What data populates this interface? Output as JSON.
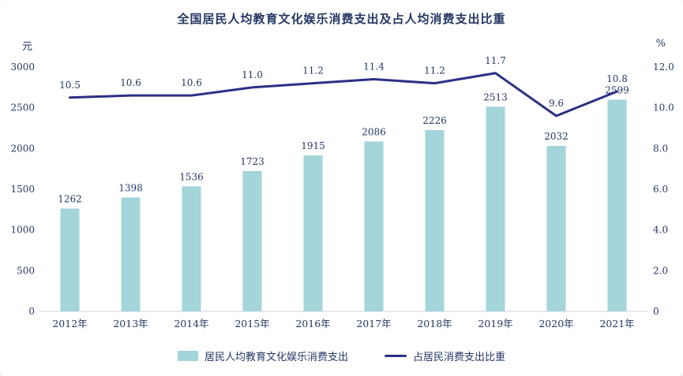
{
  "title": "全国居民人均教育文化娱乐消费支出及占人均消费支出比重",
  "colors": {
    "bar": "#a3d5da",
    "line": "#2b3184",
    "text": "#243763",
    "axis_line": "#cfd4d9"
  },
  "legend": {
    "bar_label": "居民人均教育文化娱乐消费支出",
    "line_label": "占居民消费支出比重"
  },
  "chart_data": {
    "type": "bar+line",
    "title": "全国居民人均教育文化娱乐消费支出及占人均消费支出比重",
    "categories": [
      "2012年",
      "2013年",
      "2014年",
      "2015年",
      "2016年",
      "2017年",
      "2018年",
      "2019年",
      "2020年",
      "2021年"
    ],
    "series": [
      {
        "name": "居民人均教育文化娱乐消费支出",
        "type": "bar",
        "axis": "left",
        "values": [
          1262,
          1398,
          1536,
          1723,
          1915,
          2086,
          2226,
          2513,
          2032,
          2599
        ]
      },
      {
        "name": "占居民消费支出比重",
        "type": "line",
        "axis": "right",
        "values": [
          10.5,
          10.6,
          10.6,
          11.0,
          11.2,
          11.4,
          11.2,
          11.7,
          9.6,
          10.8
        ]
      }
    ],
    "left_axis": {
      "label": "元",
      "min": 0,
      "max": 3000,
      "step": 500
    },
    "right_axis": {
      "label": "%",
      "min": 0,
      "max": 12,
      "step": 2
    },
    "grid": false,
    "legend_position": "bottom"
  }
}
